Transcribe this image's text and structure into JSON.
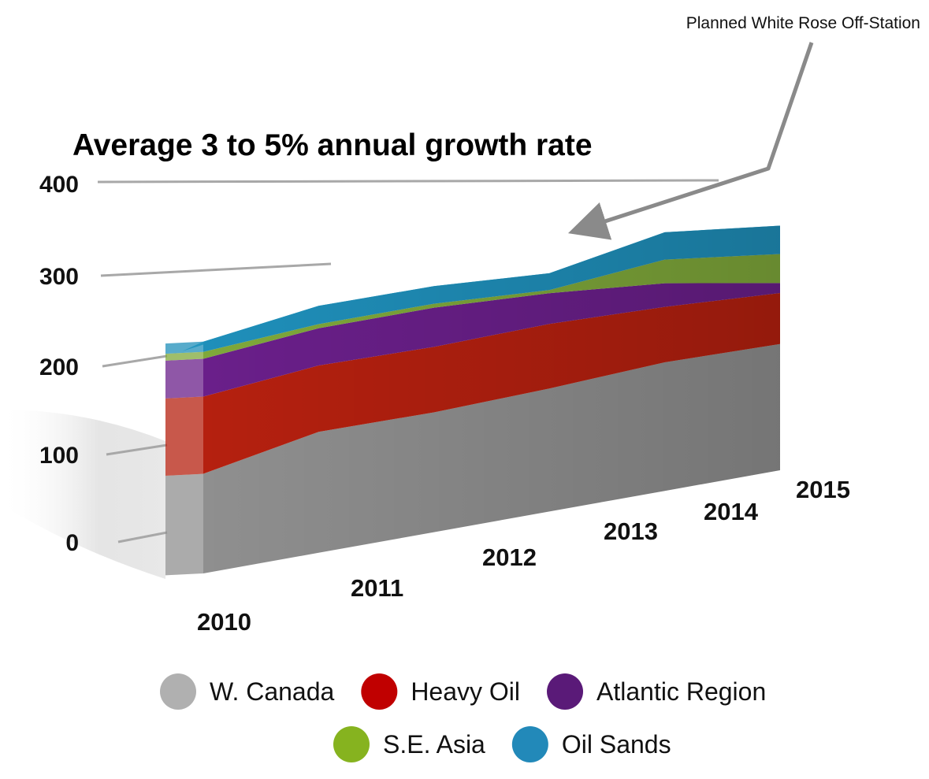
{
  "chart_data": {
    "type": "area",
    "stacked": true,
    "three_d": true,
    "title": "Average 3 to 5% annual growth rate",
    "annotation": "Planned White Rose Off-Station",
    "categories": [
      "2010",
      "2011",
      "2012",
      "2013",
      "2014",
      "2015"
    ],
    "ylim": [
      0,
      400
    ],
    "yticks": [
      "0",
      "100",
      "200",
      "300",
      "400"
    ],
    "series": [
      {
        "name": "W. Canada",
        "color": "#8f8f8f",
        "values": [
          116,
          146,
          150,
          160,
          174,
          178
        ]
      },
      {
        "name": "Heavy Oil",
        "color": "#b5200f",
        "values": [
          90,
          80,
          82,
          84,
          75,
          72
        ]
      },
      {
        "name": "Atlantic Region",
        "color": "#6a1f8a",
        "values": [
          44,
          45,
          49,
          40,
          32,
          14
        ]
      },
      {
        "name": "S.E. Asia",
        "color": "#7fa83a",
        "values": [
          8,
          5,
          5,
          4,
          32,
          41
        ]
      },
      {
        "name": "Oil Sands",
        "color": "#1f8fba",
        "values": [
          12,
          22,
          22,
          22,
          37,
          40
        ]
      }
    ],
    "legend": {
      "position": "bottom",
      "rows": [
        [
          "W. Canada",
          "Heavy Oil",
          "Atlantic Region"
        ],
        [
          "S.E. Asia",
          "Oil Sands"
        ]
      ],
      "dot_colors": {
        "W. Canada": "#b0b0b0",
        "Heavy Oil": "#c00000",
        "Atlantic Region": "#5a1a78",
        "S.E. Asia": "#86b31f",
        "Oil Sands": "#2289b9"
      }
    }
  }
}
